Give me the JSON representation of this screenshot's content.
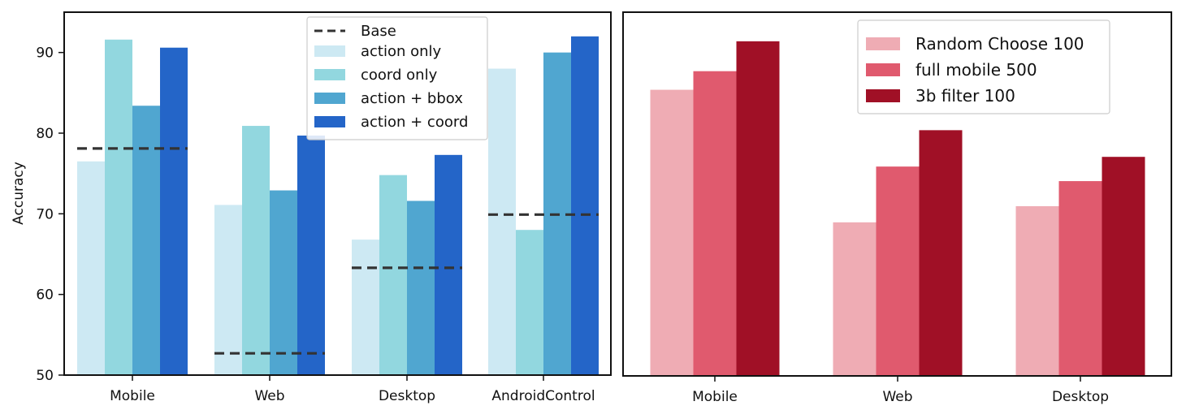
{
  "chart_data": [
    {
      "type": "bar",
      "ylabel": "Accuracy",
      "xlabel": "",
      "title": "",
      "ylim": [
        50,
        95
      ],
      "yticks": [
        50,
        60,
        70,
        80,
        90
      ],
      "categories": [
        "Mobile",
        "Web",
        "Desktop",
        "AndroidControl"
      ],
      "series": [
        {
          "name": "action only",
          "color": "#cde9f3",
          "values": [
            76.5,
            71.1,
            66.8,
            88.0
          ]
        },
        {
          "name": "coord only",
          "color": "#92d7df",
          "values": [
            91.6,
            80.9,
            74.8,
            68.0
          ]
        },
        {
          "name": "action + bbox",
          "color": "#50a6d0",
          "values": [
            83.4,
            72.9,
            71.6,
            90.0
          ]
        },
        {
          "name": "action + coord",
          "color": "#2465c8",
          "values": [
            90.6,
            79.7,
            77.3,
            92.0
          ]
        }
      ],
      "baseline": {
        "name": "Base",
        "color": "#333333",
        "values": [
          78.1,
          52.7,
          63.3,
          69.9
        ]
      },
      "legend": "top-center",
      "grid": false
    },
    {
      "type": "bar",
      "title": "",
      "xlabel": "",
      "ylabel": "",
      "ylim": [
        50,
        95
      ],
      "categories": [
        "Mobile",
        "Web",
        "Desktop"
      ],
      "series": [
        {
          "name": "Random Choose 100",
          "color": "#efacb4",
          "values": [
            85.4,
            69.0,
            71.0
          ]
        },
        {
          "name": "full mobile 500",
          "color": "#e05a6e",
          "values": [
            87.7,
            75.9,
            74.1
          ]
        },
        {
          "name": "3b filter 100",
          "color": "#a01026",
          "values": [
            91.4,
            80.4,
            77.1
          ]
        }
      ],
      "legend": "top-right",
      "grid": false
    }
  ]
}
